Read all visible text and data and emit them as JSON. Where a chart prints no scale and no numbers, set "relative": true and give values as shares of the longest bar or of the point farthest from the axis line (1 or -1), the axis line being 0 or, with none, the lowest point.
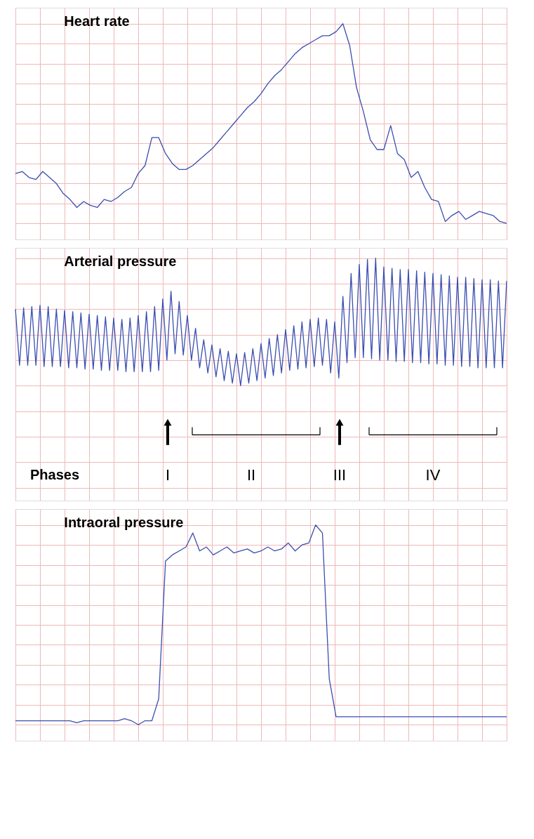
{
  "chart_data": [
    {
      "type": "line",
      "title": "Heart rate",
      "relative": true,
      "grid": true,
      "categories": [
        null,
        null,
        null,
        null,
        null,
        null,
        null,
        null,
        null,
        null,
        null,
        null,
        null,
        null,
        null,
        null,
        null,
        null,
        null,
        null,
        null,
        null,
        null,
        null,
        null,
        null,
        null,
        null,
        null,
        null,
        null,
        null,
        null,
        null,
        null,
        null,
        null,
        null,
        null,
        null,
        null,
        null,
        null,
        null,
        null,
        null,
        null,
        null,
        null,
        null,
        null,
        null,
        null,
        null,
        null,
        null,
        null,
        null,
        null,
        null,
        null,
        null,
        null,
        null,
        null,
        null,
        null,
        null,
        null,
        null,
        null,
        null,
        null
      ],
      "series": [
        {
          "color": "#3a4fb0",
          "values": [
            0.25,
            0.26,
            0.23,
            0.22,
            0.26,
            0.23,
            0.2,
            0.15,
            0.12,
            0.08,
            0.11,
            0.09,
            0.08,
            0.12,
            0.11,
            0.13,
            0.16,
            0.18,
            0.25,
            0.29,
            0.43,
            0.43,
            0.35,
            0.3,
            0.27,
            0.27,
            0.29,
            0.32,
            0.35,
            0.38,
            0.42,
            0.46,
            0.5,
            0.54,
            0.58,
            0.61,
            0.65,
            0.7,
            0.74,
            0.77,
            0.81,
            0.85,
            0.88,
            0.9,
            0.92,
            0.94,
            0.94,
            0.96,
            1.0,
            0.89,
            0.68,
            0.56,
            0.42,
            0.37,
            0.37,
            0.49,
            0.35,
            0.32,
            0.23,
            0.26,
            0.18,
            0.12,
            0.11,
            0.01,
            0.04,
            0.06,
            0.02,
            0.04,
            0.06,
            0.05,
            0.04,
            0.01,
            0.0
          ]
        }
      ]
    },
    {
      "type": "line",
      "title": "Arterial pressure",
      "relative": true,
      "grid": true,
      "annotations": [
        "Phases",
        "I",
        "II",
        "III",
        "IV"
      ],
      "categories": [
        null,
        null,
        null,
        null,
        null,
        null,
        null,
        null,
        null,
        null,
        null,
        null,
        null,
        null,
        null,
        null,
        null,
        null,
        null,
        null,
        null,
        null,
        null,
        null,
        null,
        null,
        null,
        null,
        null,
        null,
        null,
        null,
        null,
        null,
        null,
        null,
        null,
        null,
        null,
        null,
        null,
        null,
        null,
        null,
        null,
        null,
        null,
        null,
        null,
        null,
        null,
        null,
        null,
        null,
        null,
        null,
        null,
        null,
        null,
        null,
        null,
        null,
        null,
        null,
        null,
        null,
        null,
        null,
        null,
        null,
        null,
        null,
        null,
        null,
        null,
        null,
        null,
        null,
        null,
        null,
        null,
        null,
        null,
        null,
        null,
        null,
        null,
        null,
        null,
        null,
        null,
        null,
        null,
        null,
        null,
        null,
        null,
        null,
        null,
        null,
        null,
        null,
        null,
        null,
        null,
        null,
        null,
        null,
        null,
        null,
        null,
        null,
        null,
        null,
        null,
        null,
        null,
        null,
        null,
        null,
        null
      ],
      "series": [
        {
          "color": "#3a4fb0",
          "values": [
            0.6,
            0.16,
            0.61,
            0.16,
            0.62,
            0.16,
            0.63,
            0.15,
            0.62,
            0.15,
            0.6,
            0.15,
            0.59,
            0.14,
            0.58,
            0.14,
            0.57,
            0.13,
            0.56,
            0.13,
            0.55,
            0.12,
            0.54,
            0.12,
            0.53,
            0.12,
            0.52,
            0.11,
            0.53,
            0.11,
            0.55,
            0.11,
            0.58,
            0.11,
            0.62,
            0.12,
            0.68,
            0.2,
            0.74,
            0.25,
            0.66,
            0.24,
            0.55,
            0.2,
            0.45,
            0.14,
            0.36,
            0.1,
            0.32,
            0.07,
            0.29,
            0.04,
            0.27,
            0.02,
            0.25,
            0.0,
            0.26,
            0.02,
            0.29,
            0.04,
            0.33,
            0.06,
            0.37,
            0.08,
            0.4,
            0.1,
            0.44,
            0.12,
            0.47,
            0.13,
            0.5,
            0.14,
            0.52,
            0.15,
            0.53,
            0.16,
            0.52,
            0.1,
            0.5,
            0.06,
            0.7,
            0.18,
            0.88,
            0.22,
            0.95,
            0.22,
            0.99,
            0.21,
            1.0,
            0.2,
            0.93,
            0.2,
            0.92,
            0.19,
            0.91,
            0.19,
            0.91,
            0.18,
            0.9,
            0.18,
            0.89,
            0.17,
            0.88,
            0.17,
            0.87,
            0.16,
            0.86,
            0.16,
            0.85,
            0.15,
            0.85,
            0.15,
            0.84,
            0.14,
            0.83,
            0.14,
            0.83,
            0.14,
            0.82,
            0.14,
            0.82
          ]
        }
      ]
    },
    {
      "type": "line",
      "title": "Intraoral pressure",
      "relative": true,
      "grid": true,
      "categories": [
        null,
        null,
        null,
        null,
        null,
        null,
        null,
        null,
        null,
        null,
        null,
        null,
        null,
        null,
        null,
        null,
        null,
        null,
        null,
        null,
        null,
        null,
        null,
        null,
        null,
        null,
        null,
        null,
        null,
        null,
        null,
        null,
        null,
        null,
        null,
        null,
        null,
        null,
        null,
        null,
        null,
        null,
        null,
        null,
        null,
        null,
        null,
        null,
        null,
        null,
        null,
        null,
        null,
        null,
        null,
        null,
        null,
        null,
        null,
        null,
        null,
        null,
        null,
        null,
        null,
        null,
        null,
        null,
        null,
        null,
        null,
        null,
        null
      ],
      "series": [
        {
          "color": "#3a4fb0",
          "values": [
            0.02,
            0.02,
            0.02,
            0.02,
            0.02,
            0.02,
            0.02,
            0.02,
            0.02,
            0.01,
            0.02,
            0.02,
            0.02,
            0.02,
            0.02,
            0.02,
            0.03,
            0.02,
            0.0,
            0.02,
            0.02,
            0.13,
            0.82,
            0.85,
            0.87,
            0.89,
            0.96,
            0.87,
            0.89,
            0.85,
            0.87,
            0.89,
            0.86,
            0.87,
            0.88,
            0.86,
            0.87,
            0.89,
            0.87,
            0.88,
            0.91,
            0.87,
            0.9,
            0.91,
            1.0,
            0.96,
            0.23,
            0.04,
            0.04,
            0.04,
            0.04,
            0.04,
            0.04,
            0.04,
            0.04,
            0.04,
            0.04,
            0.04,
            0.04,
            0.04,
            0.04,
            0.04,
            0.04,
            0.04,
            0.04,
            0.04,
            0.04,
            0.04,
            0.04,
            0.04,
            0.04,
            0.04,
            0.04
          ]
        }
      ]
    }
  ]
}
